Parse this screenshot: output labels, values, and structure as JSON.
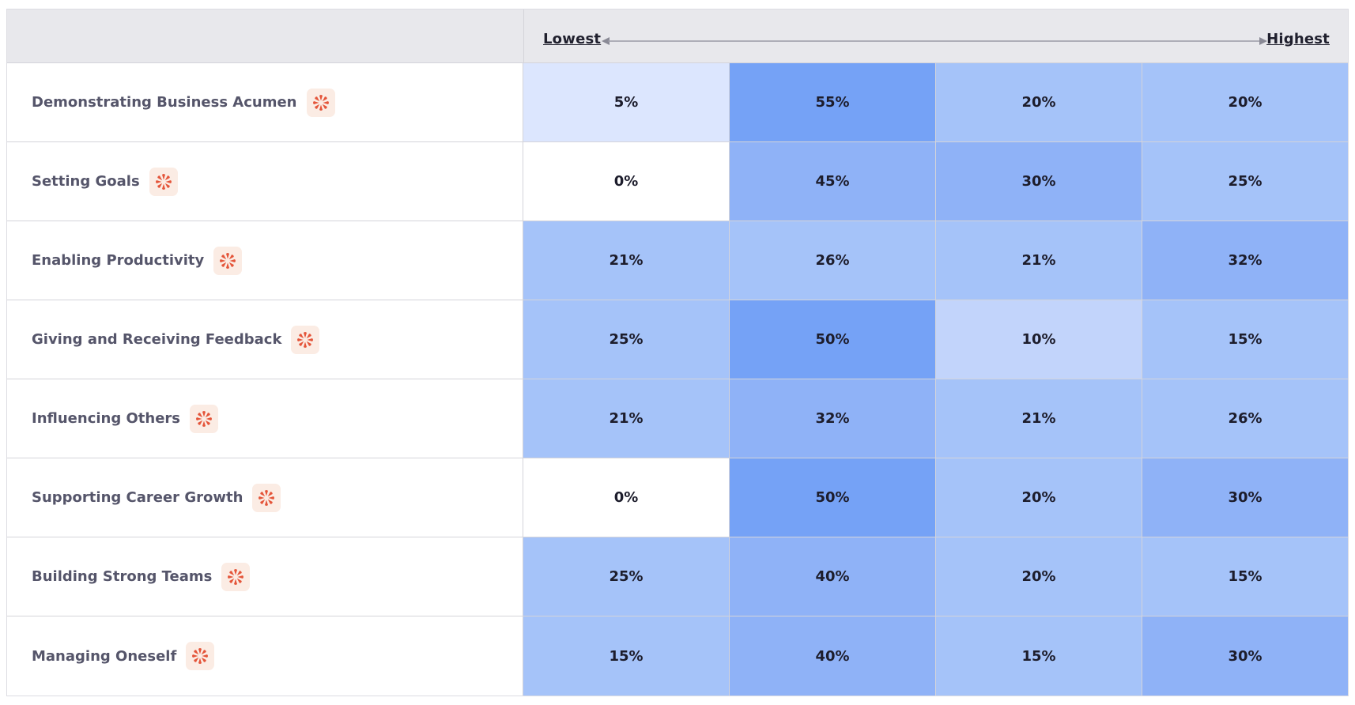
{
  "scale": {
    "low_label": "Lowest",
    "high_label": "Highest"
  },
  "colors": {
    "header_bg": "#e8e8ec",
    "badge_bg": "#fbece4",
    "badge_icon": "#e4553a",
    "heat_0": "#ffffff",
    "heat_1": "#dce6fe",
    "heat_2": "#c2d4fb",
    "heat_3": "#a5c3f9",
    "heat_4": "#8fb2f7",
    "heat_5": "#75a2f6"
  },
  "rows": [
    {
      "label": "Demonstrating Business Acumen",
      "icon": "star-burst-icon",
      "values": [
        "5%",
        "55%",
        "20%",
        "20%"
      ],
      "levels": [
        1,
        5,
        3,
        3
      ]
    },
    {
      "label": "Setting Goals",
      "icon": "star-burst-icon",
      "values": [
        "0%",
        "45%",
        "30%",
        "25%"
      ],
      "levels": [
        0,
        4,
        4,
        3
      ]
    },
    {
      "label": "Enabling Productivity",
      "icon": "star-burst-icon",
      "values": [
        "21%",
        "26%",
        "21%",
        "32%"
      ],
      "levels": [
        3,
        3,
        3,
        4
      ]
    },
    {
      "label": "Giving and Receiving Feedback",
      "icon": "star-burst-icon",
      "values": [
        "25%",
        "50%",
        "10%",
        "15%"
      ],
      "levels": [
        3,
        5,
        2,
        3
      ]
    },
    {
      "label": "Influencing Others",
      "icon": "star-burst-icon",
      "values": [
        "21%",
        "32%",
        "21%",
        "26%"
      ],
      "levels": [
        3,
        4,
        3,
        3
      ]
    },
    {
      "label": "Supporting Career Growth",
      "icon": "star-burst-icon",
      "values": [
        "0%",
        "50%",
        "20%",
        "30%"
      ],
      "levels": [
        0,
        5,
        3,
        4
      ]
    },
    {
      "label": "Building Strong Teams",
      "icon": "star-burst-icon",
      "values": [
        "25%",
        "40%",
        "20%",
        "15%"
      ],
      "levels": [
        3,
        4,
        3,
        3
      ]
    },
    {
      "label": "Managing Oneself",
      "icon": "star-burst-icon",
      "values": [
        "15%",
        "40%",
        "15%",
        "30%"
      ],
      "levels": [
        3,
        4,
        3,
        4
      ]
    }
  ]
}
